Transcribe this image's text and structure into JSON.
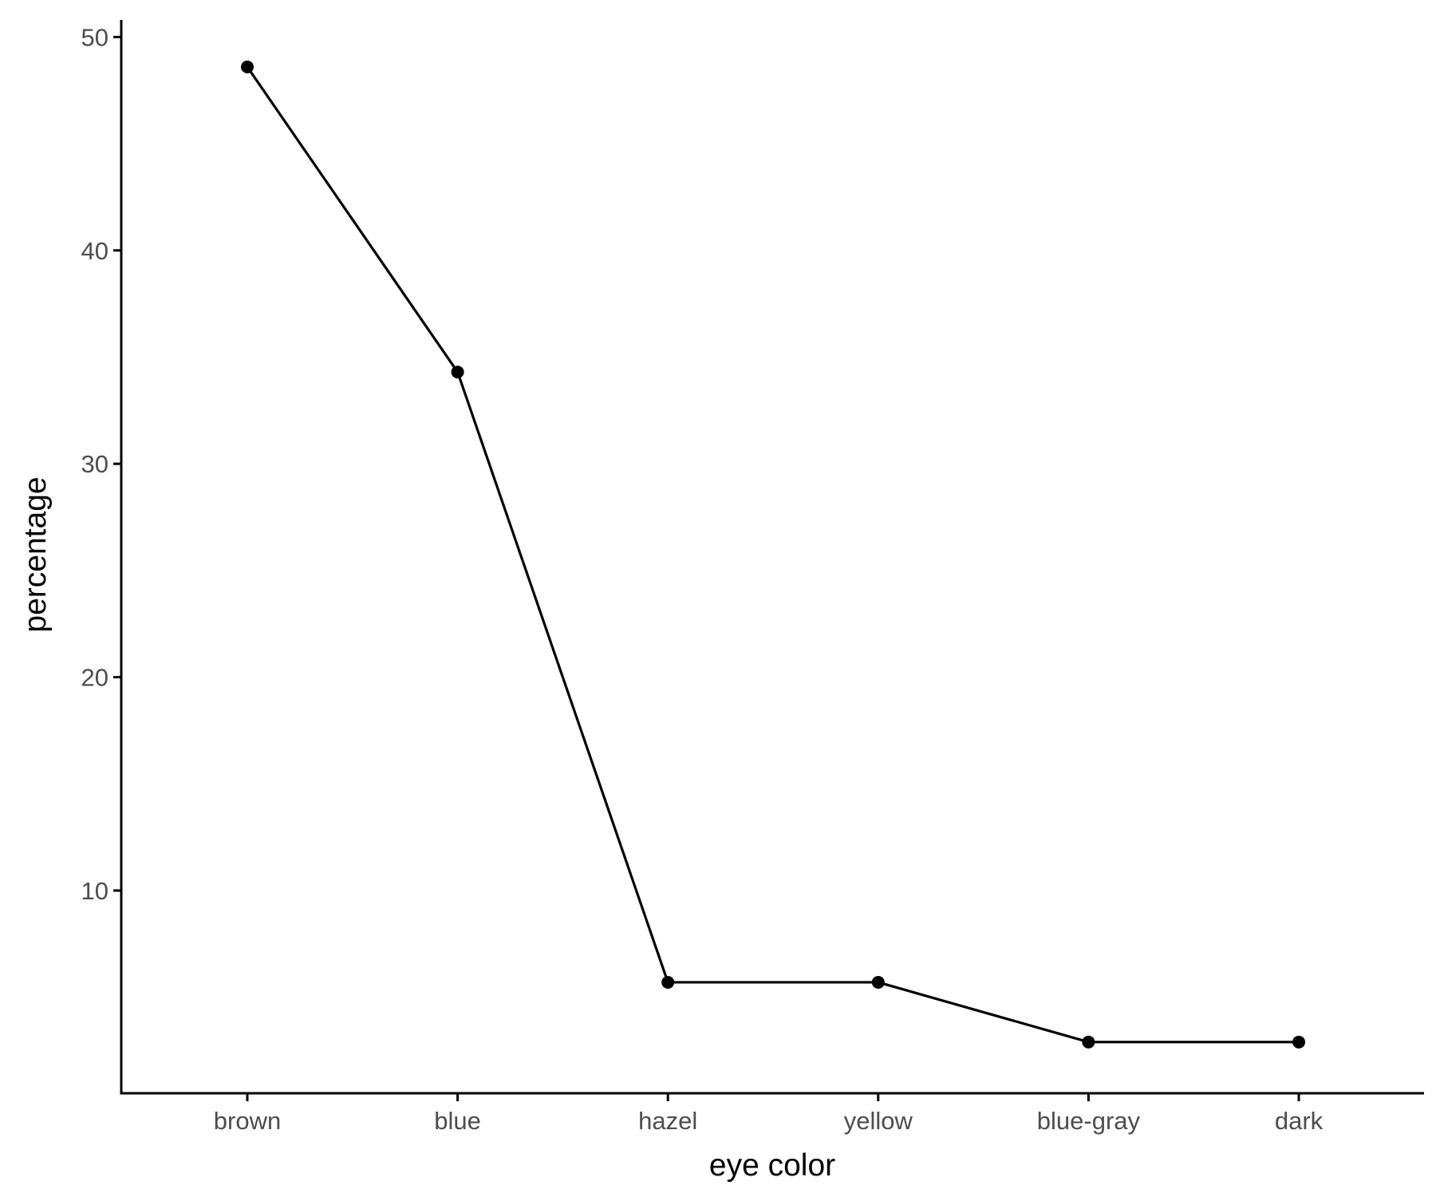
{
  "chart_data": {
    "type": "line",
    "categories": [
      "brown",
      "blue",
      "hazel",
      "yellow",
      "blue-gray",
      "dark"
    ],
    "series": [
      {
        "values": [
          48.6,
          34.3,
          5.7,
          5.7,
          2.9,
          2.9
        ]
      }
    ],
    "title": "",
    "xlabel": "eye color",
    "ylabel": "percentage",
    "ylim": [
      0.5,
      50.8
    ],
    "yticks": [
      10,
      20,
      30,
      40,
      50
    ],
    "grid": false,
    "legend": "none",
    "colors": {
      "line": "#000000",
      "point": "#000000",
      "axis": "#000000",
      "tick_text": "#4d4d4d"
    }
  }
}
